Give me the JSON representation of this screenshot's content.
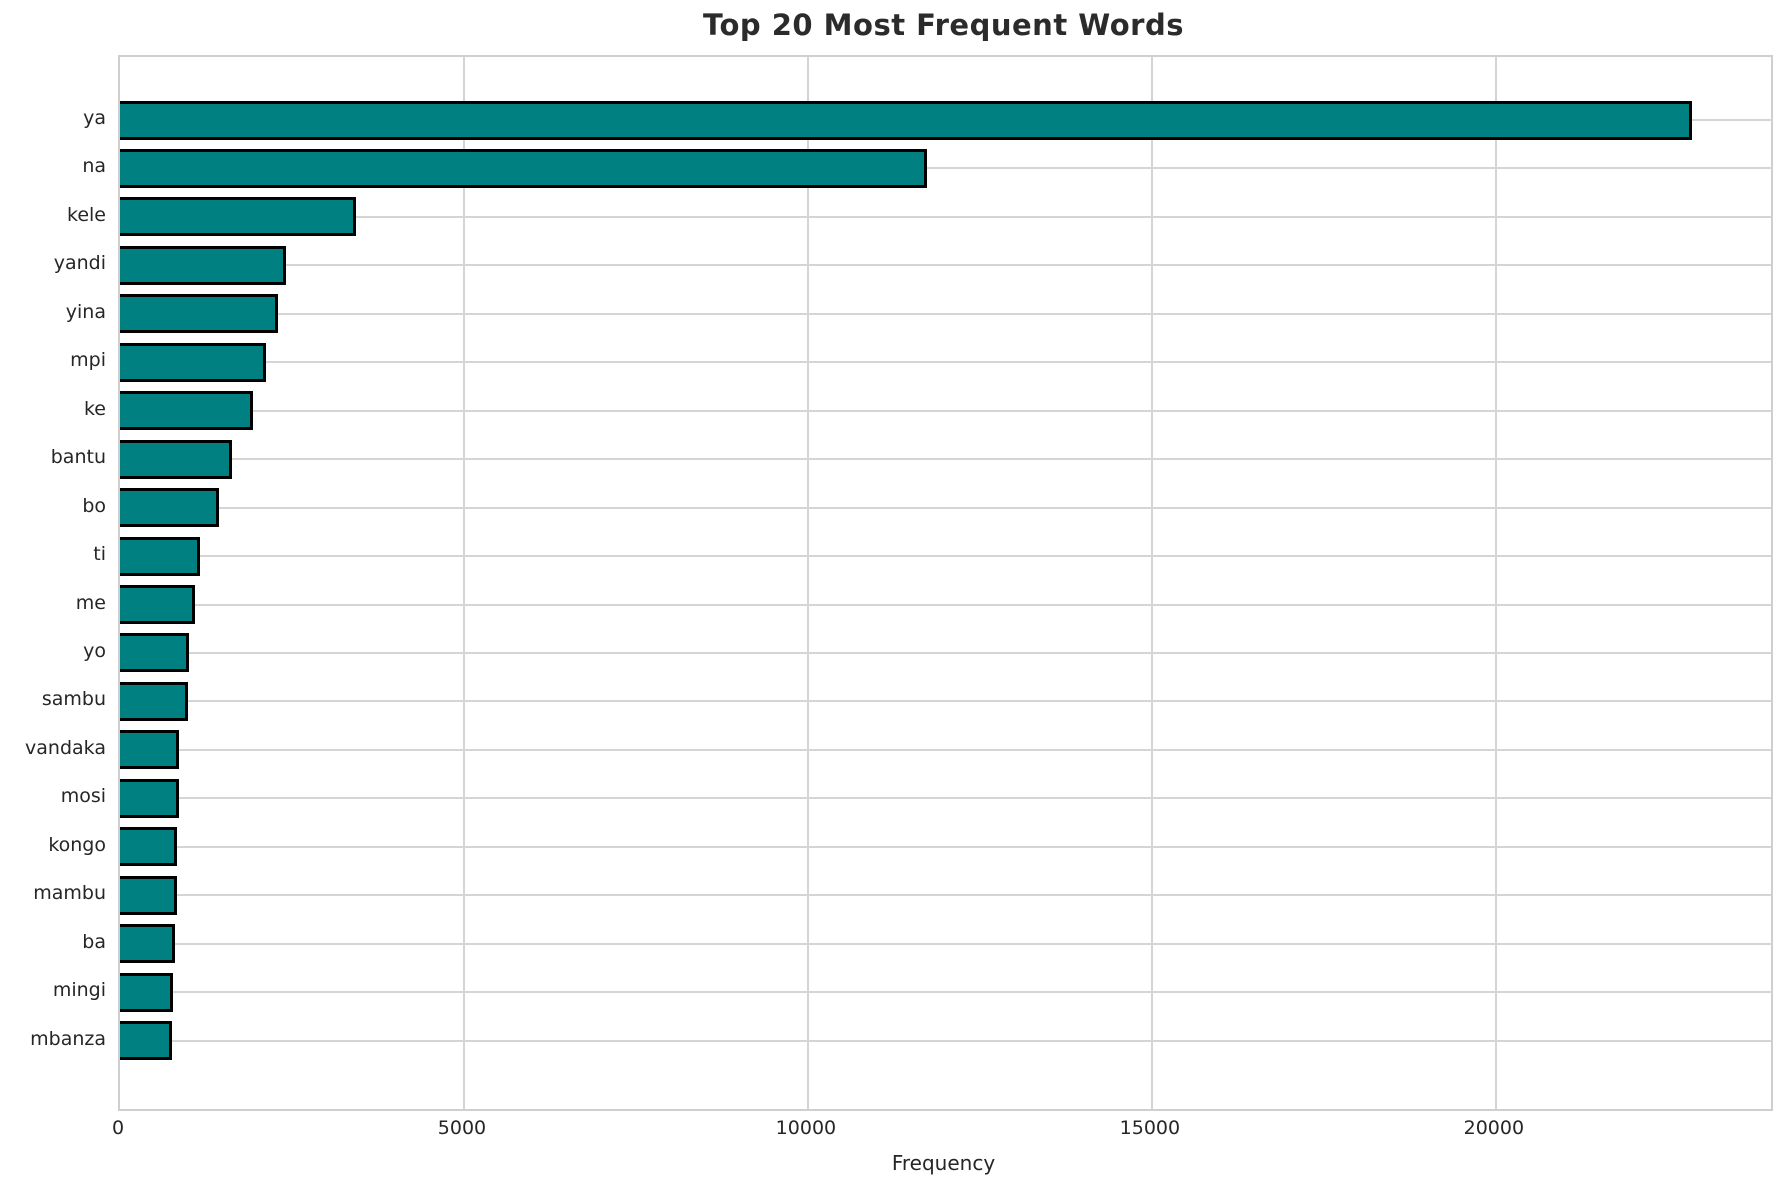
{
  "chart_data": {
    "type": "bar",
    "orientation": "horizontal",
    "title": "Top 20 Most Frequent Words",
    "xlabel": "Frequency",
    "ylabel": "",
    "categories": [
      "ya",
      "na",
      "kele",
      "yandi",
      "yina",
      "mpi",
      "ke",
      "bantu",
      "bo",
      "ti",
      "me",
      "yo",
      "sambu",
      "vandaka",
      "mosi",
      "kongo",
      "mambu",
      "ba",
      "mingi",
      "mbanza"
    ],
    "values": [
      22850,
      11730,
      3430,
      2420,
      2290,
      2120,
      1940,
      1630,
      1440,
      1170,
      1090,
      1010,
      990,
      860,
      855,
      830,
      825,
      800,
      775,
      755
    ],
    "xlim": [
      0,
      24000
    ],
    "x_ticks": [
      0,
      5000,
      10000,
      15000,
      20000
    ],
    "grid": true,
    "legend": "none",
    "bar_color": "#008080",
    "bar_edge_color": "#000000",
    "grid_color": "#d5d5d5",
    "text_color": "#262626",
    "background_color": "#ffffff"
  }
}
